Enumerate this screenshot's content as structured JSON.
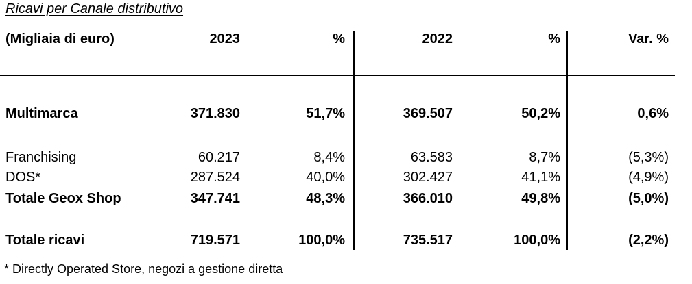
{
  "page": {
    "title": "Ricavi per Canale distributivo",
    "footnote": "* Directly Operated Store, negozi a gestione diretta"
  },
  "table": {
    "header": {
      "unit_label": "(Migliaia di euro)",
      "col_2023": "2023",
      "col_pct_2023": "%",
      "col_2022": "2022",
      "col_pct_2022": "%",
      "col_var": "Var. %"
    },
    "rows": [
      {
        "label": "Multimarca",
        "v2023": "371.830",
        "p2023": "51,7%",
        "v2022": "369.507",
        "p2022": "50,2%",
        "var_pct": "0,6%",
        "emphasis": "bold"
      },
      {
        "label": "Franchising",
        "v2023": "60.217",
        "p2023": "8,4%",
        "v2022": "63.583",
        "p2022": "8,7%",
        "var_pct": "(5,3%)",
        "emphasis": "regular"
      },
      {
        "label": "DOS*",
        "v2023": "287.524",
        "p2023": "40,0%",
        "v2022": "302.427",
        "p2022": "41,1%",
        "var_pct": "(4,9%)",
        "emphasis": "regular"
      },
      {
        "label": "Totale Geox Shop",
        "v2023": "347.741",
        "p2023": "48,3%",
        "v2022": "366.010",
        "p2022": "49,8%",
        "var_pct": "(5,0%)",
        "emphasis": "bold"
      },
      {
        "label": "Totale ricavi",
        "v2023": "719.571",
        "p2023": "100,0%",
        "v2022": "735.517",
        "p2022": "100,0%",
        "var_pct": "(2,2%)",
        "emphasis": "bold"
      }
    ]
  }
}
